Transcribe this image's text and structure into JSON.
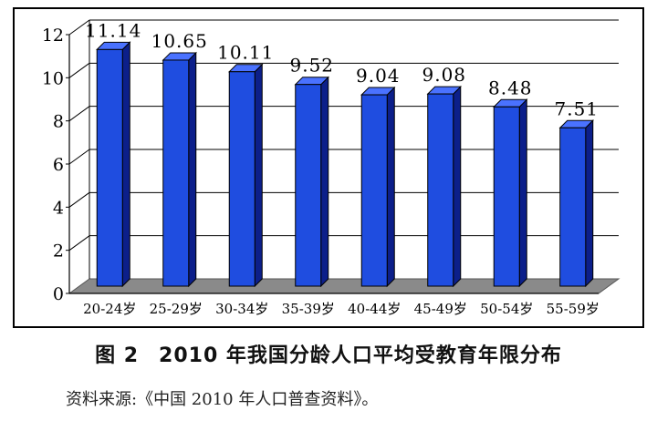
{
  "chart_data": {
    "type": "bar",
    "categories": [
      "20-24岁",
      "25-29岁",
      "30-34岁",
      "35-39岁",
      "40-44岁",
      "45-49岁",
      "50-54岁",
      "55-59岁"
    ],
    "values": [
      11.14,
      10.65,
      10.11,
      9.52,
      9.04,
      9.08,
      8.48,
      7.51
    ],
    "value_labels": [
      "11.14",
      "10.65",
      "10.11",
      "9.52",
      "9.04",
      "9.08",
      "8.48",
      "7.51"
    ],
    "y_ticks": [
      "0",
      "2",
      "4",
      "6",
      "8",
      "10",
      "12"
    ],
    "ylim": [
      0,
      12
    ],
    "grid": true,
    "style": "3d-column",
    "bar_color": "#1f4de0",
    "bar_side_color": "#0c1f8a",
    "bar_top_color": "#4a72ff",
    "floor_color": "#8a8a8a"
  },
  "caption": {
    "figure_number": "图 2",
    "title": "2010 年我国分龄人口平均受教育年限分布"
  },
  "source": "资料来源:《中国 2010 年人口普查资料》。"
}
